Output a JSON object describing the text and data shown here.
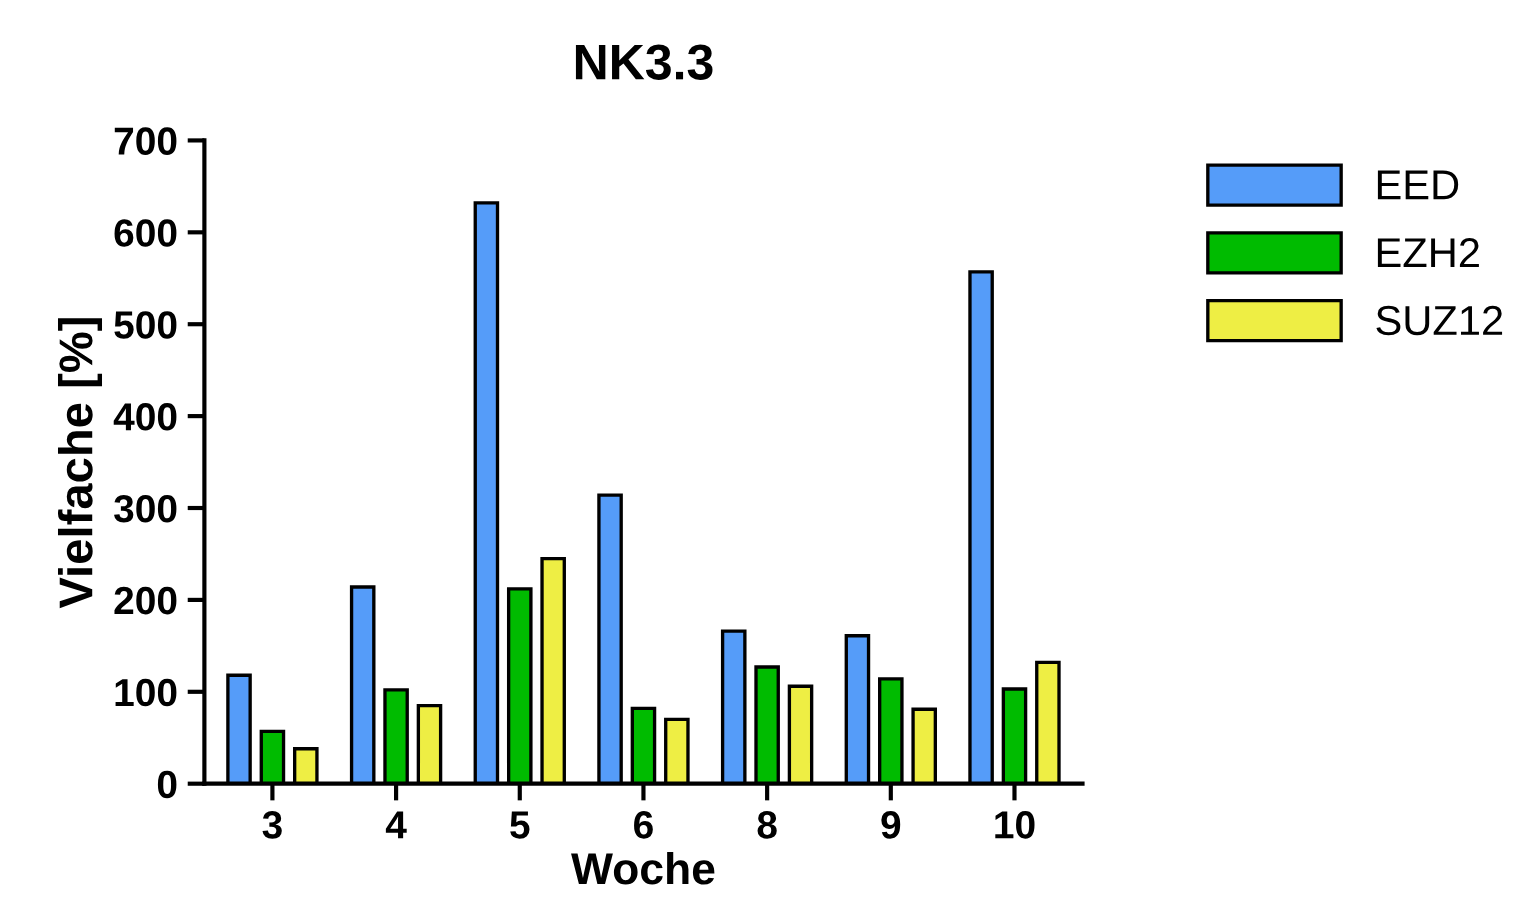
{
  "chart_data": {
    "type": "bar",
    "title": "NK3.3",
    "xlabel": "Woche",
    "ylabel": "Vielfache [%]",
    "categories": [
      "3",
      "4",
      "5",
      "6",
      "8",
      "9",
      "10"
    ],
    "series": [
      {
        "name": "EED",
        "color": "#559cf9",
        "values": [
          118,
          214,
          632,
          314,
          166,
          161,
          557
        ]
      },
      {
        "name": "EZH2",
        "color": "#00bb00",
        "values": [
          57,
          102,
          212,
          82,
          127,
          114,
          103
        ]
      },
      {
        "name": "SUZ12",
        "color": "#eeee44",
        "values": [
          38,
          85,
          245,
          70,
          106,
          81,
          132
        ]
      }
    ],
    "ylim": [
      0,
      700
    ],
    "yticks": [
      0,
      100,
      200,
      300,
      400,
      500,
      600,
      700
    ],
    "grid": false,
    "legend": "right"
  }
}
